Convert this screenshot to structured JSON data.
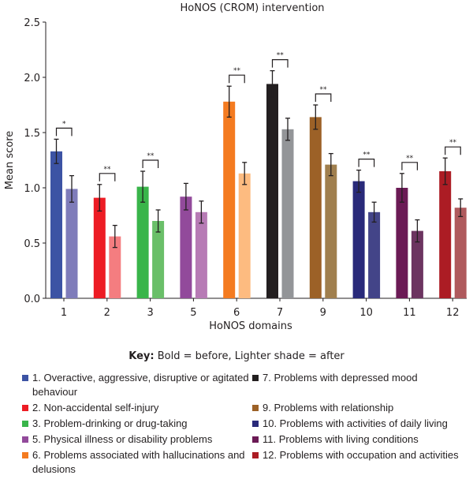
{
  "chart_data": {
    "type": "bar",
    "title": "HoNOS (CROM) intervention",
    "xlabel": "HoNOS domains",
    "ylabel": "Mean score",
    "ylim": [
      0,
      2.5
    ],
    "yticks": [
      "0.0",
      "0.5",
      "1.0",
      "1.5",
      "2.0",
      "2.5"
    ],
    "categories": [
      "1",
      "2",
      "3",
      "5",
      "6",
      "7",
      "9",
      "10",
      "11",
      "12"
    ],
    "series": [
      {
        "name": "before",
        "values": [
          1.33,
          0.91,
          1.01,
          0.92,
          1.78,
          1.94,
          1.64,
          1.06,
          1.0,
          1.15
        ],
        "errors": [
          0.11,
          0.12,
          0.14,
          0.12,
          0.14,
          0.12,
          0.11,
          0.1,
          0.13,
          0.12
        ],
        "colors": [
          "#3c53a4",
          "#ed1c24",
          "#39b54a",
          "#924a9b",
          "#f47b20",
          "#231f20",
          "#9c6127",
          "#292a7a",
          "#6b1a55",
          "#ac1c24"
        ]
      },
      {
        "name": "after",
        "values": [
          0.99,
          0.56,
          0.7,
          0.78,
          1.13,
          1.53,
          1.21,
          0.78,
          0.61,
          0.82
        ],
        "errors": [
          0.12,
          0.1,
          0.1,
          0.1,
          0.1,
          0.1,
          0.1,
          0.09,
          0.1,
          0.08
        ],
        "colors": [
          "#7f7cba",
          "#f47d80",
          "#6abf69",
          "#b77bb5",
          "#fdbb80",
          "#939598",
          "#a07f4e",
          "#434488",
          "#6c3460",
          "#af5a5d"
        ]
      }
    ],
    "significance": [
      "*",
      "**",
      "**",
      "",
      "**",
      "**",
      "**",
      "**",
      "**",
      "**"
    ],
    "grid": false
  },
  "key": {
    "label": "Key:",
    "text": " Bold = before, Lighter shade = after"
  },
  "legend": [
    {
      "text": "1. Overactive, aggressive, disruptive or agitated behaviour",
      "color": "#3c53a4"
    },
    {
      "text": "2. Non-accidental self-injury",
      "color": "#ed1c24"
    },
    {
      "text": "3. Problem-drinking or drug-taking",
      "color": "#39b54a"
    },
    {
      "text": "5. Physical illness or disability problems",
      "color": "#924a9b"
    },
    {
      "text": "6. Problems associated with hallucinations and delusions",
      "color": "#f47b20"
    },
    {
      "text": "7. Problems with depressed mood",
      "color": "#231f20"
    },
    {
      "text": "9. Problems with relationship",
      "color": "#9c6127"
    },
    {
      "text": "10. Problems with activities of daily living",
      "color": "#292a7a"
    },
    {
      "text": "11. Problems with living conditions",
      "color": "#6b1a55"
    },
    {
      "text": "12. Problems with occupation and activities",
      "color": "#ac1c24"
    }
  ]
}
